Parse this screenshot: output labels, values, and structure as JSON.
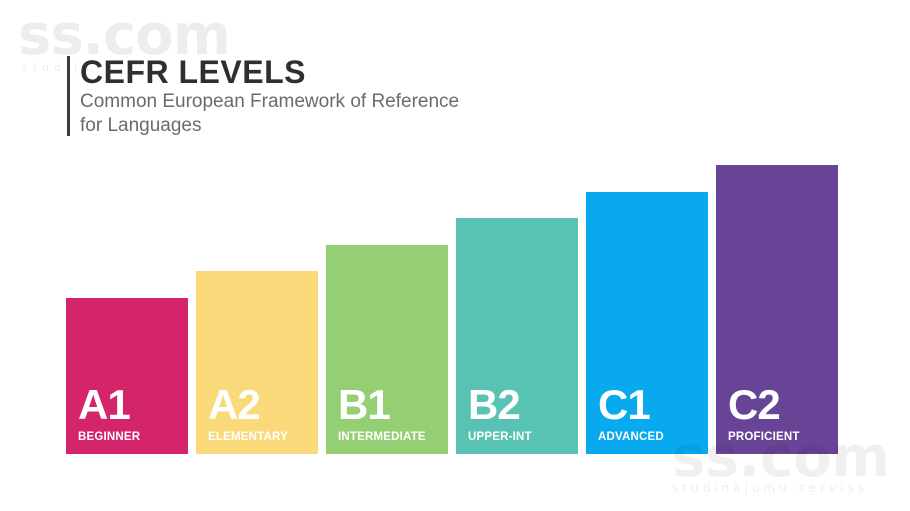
{
  "header": {
    "title": "CEFR LEVELS",
    "subtitle": "Common European Framework of Reference for Languages"
  },
  "watermarks": {
    "top_text": "ss.com",
    "top_subtext": "studiju",
    "bottom_text": "ss.com",
    "bottom_subtext": "studinājumu serviss"
  },
  "levels": [
    {
      "code": "A1",
      "label": "BEGINNER",
      "color": "#D4246A",
      "rank": 1
    },
    {
      "code": "A2",
      "label": "ELEMENTARY",
      "color": "#FAD97A",
      "rank": 2
    },
    {
      "code": "B1",
      "label": "INTERMEDIATE",
      "color": "#94CF73",
      "rank": 3
    },
    {
      "code": "B2",
      "label": "UPPER-INT",
      "color": "#58C3B3",
      "rank": 4
    },
    {
      "code": "C1",
      "label": "ADVANCED",
      "color": "#08A9EE",
      "rank": 5
    },
    {
      "code": "C2",
      "label": "PROFICIENT",
      "color": "#674496",
      "rank": 6
    }
  ]
}
